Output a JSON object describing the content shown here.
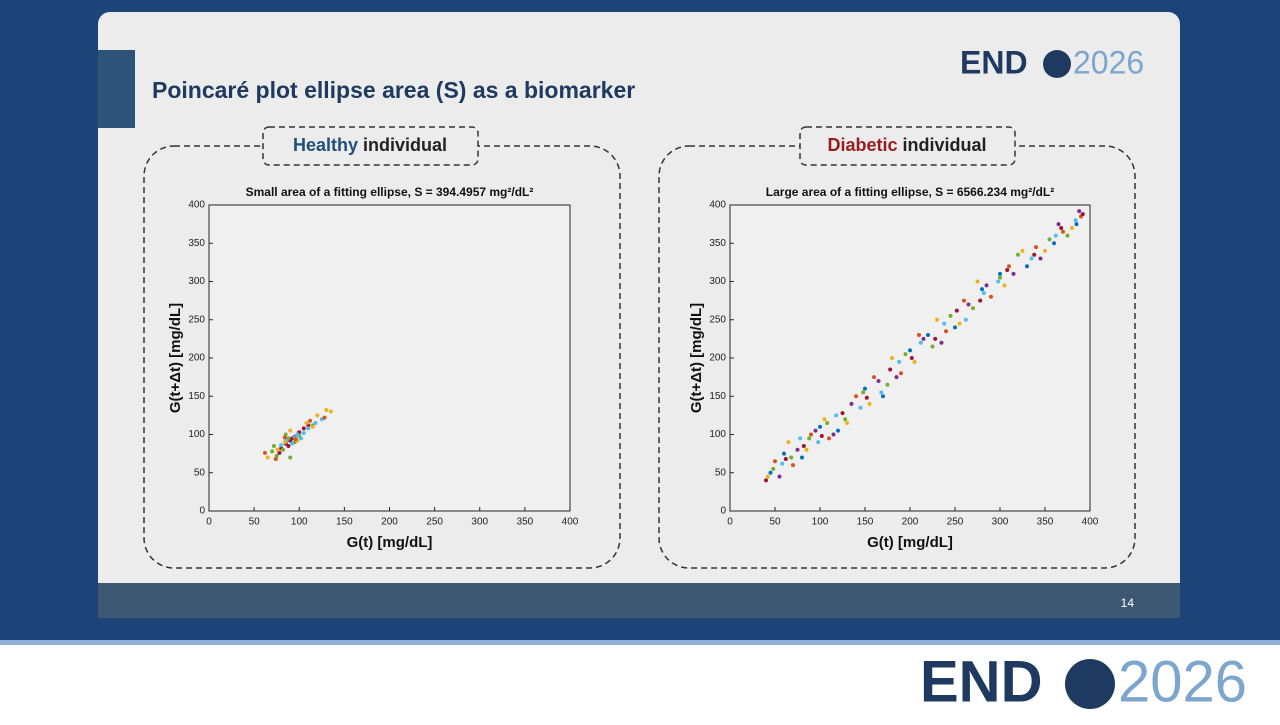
{
  "slide": {
    "title": "Poincaré plot ellipse area (S) as a biomarker",
    "page_number": "14"
  },
  "logo": {
    "left": "END",
    "right": "2026"
  },
  "panels": [
    {
      "highlight": "Healthy",
      "rest": "individual"
    },
    {
      "highlight": "Diabetic",
      "rest": "individual"
    }
  ],
  "chart_data": [
    {
      "type": "scatter",
      "title": "Small area of a fitting ellipse, S = 394.4957 mg²/dL²",
      "x_label": "G(t) [mg/dL]",
      "y_label": "G(t+Δt) [mg/dL]",
      "xlim": [
        0,
        400
      ],
      "ylim": [
        0,
        400
      ],
      "xticks": [
        0,
        50,
        100,
        150,
        200,
        250,
        300,
        350,
        400
      ],
      "yticks": [
        0,
        50,
        100,
        150,
        200,
        250,
        300,
        350,
        400
      ],
      "series": [
        {
          "color": "#A2142F",
          "x": [
            80,
            85,
            90,
            95,
            100,
            88,
            92,
            105,
            78,
            110
          ],
          "y": [
            82,
            88,
            92,
            97,
            103,
            85,
            95,
            108,
            76,
            112
          ]
        },
        {
          "color": "#77AC30",
          "x": [
            70,
            75,
            82,
            95,
            88,
            100,
            115,
            72,
            90,
            85
          ],
          "y": [
            78,
            72,
            80,
            90,
            95,
            98,
            112,
            85,
            70,
            100
          ]
        },
        {
          "color": "#4DBEEE",
          "x": [
            92,
            98,
            105,
            110,
            86,
            95,
            118,
            102,
            80,
            125
          ],
          "y": [
            88,
            100,
            102,
            108,
            92,
            96,
            115,
            95,
            86,
            120
          ]
        },
        {
          "color": "#EDB120",
          "x": [
            65,
            120,
            130,
            108,
            76,
            98,
            135,
            90,
            84,
            115
          ],
          "y": [
            70,
            125,
            132,
            115,
            80,
            92,
            130,
            105,
            90,
            110
          ]
        },
        {
          "color": "#D95319",
          "x": [
            62,
            74,
            96,
            112,
            128,
            84
          ],
          "y": [
            76,
            68,
            94,
            118,
            122,
            96
          ]
        }
      ]
    },
    {
      "type": "scatter",
      "title": "Large area of a fitting ellipse, S = 6566.234 mg²/dL²",
      "x_label": "G(t) [mg/dL]",
      "y_label": "G(t+Δt) [mg/dL]",
      "xlim": [
        0,
        400
      ],
      "ylim": [
        0,
        400
      ],
      "xticks": [
        0,
        50,
        100,
        150,
        200,
        250,
        300,
        350,
        400
      ],
      "yticks": [
        0,
        50,
        100,
        150,
        200,
        250,
        300,
        350,
        400
      ],
      "series": [
        {
          "color": "#0072BD",
          "x": [
            45,
            60,
            80,
            100,
            120,
            150,
            170,
            200,
            220,
            250,
            280,
            300,
            330,
            360,
            385
          ],
          "y": [
            50,
            75,
            70,
            110,
            105,
            160,
            150,
            210,
            230,
            240,
            290,
            310,
            320,
            350,
            375
          ]
        },
        {
          "color": "#D95319",
          "x": [
            50,
            70,
            90,
            110,
            140,
            160,
            190,
            210,
            240,
            260,
            290,
            310,
            340,
            370,
            390
          ],
          "y": [
            65,
            60,
            100,
            95,
            150,
            175,
            180,
            230,
            235,
            275,
            280,
            320,
            345,
            365,
            385
          ]
        },
        {
          "color": "#EDB120",
          "x": [
            42,
            65,
            85,
            105,
            130,
            155,
            180,
            205,
            230,
            255,
            275,
            305,
            325,
            350,
            380
          ],
          "y": [
            45,
            90,
            80,
            120,
            115,
            140,
            200,
            195,
            250,
            245,
            300,
            295,
            340,
            340,
            370
          ]
        },
        {
          "color": "#7E2F8E",
          "x": [
            55,
            75,
            95,
            115,
            135,
            165,
            185,
            215,
            235,
            265,
            285,
            315,
            345,
            365,
            388
          ],
          "y": [
            45,
            80,
            105,
            100,
            140,
            170,
            175,
            225,
            220,
            270,
            295,
            310,
            330,
            375,
            392
          ]
        },
        {
          "color": "#77AC30",
          "x": [
            48,
            68,
            88,
            108,
            128,
            148,
            175,
            195,
            225,
            245,
            270,
            300,
            320,
            355,
            375
          ],
          "y": [
            55,
            70,
            95,
            115,
            120,
            155,
            165,
            205,
            215,
            255,
            265,
            305,
            335,
            355,
            360
          ]
        },
        {
          "color": "#4DBEEE",
          "x": [
            58,
            78,
            98,
            118,
            145,
            168,
            188,
            212,
            238,
            262,
            282,
            298,
            335,
            362,
            384
          ],
          "y": [
            62,
            95,
            90,
            125,
            135,
            155,
            195,
            220,
            245,
            250,
            285,
            300,
            330,
            360,
            380
          ]
        },
        {
          "color": "#A2142F",
          "x": [
            40,
            62,
            82,
            102,
            125,
            152,
            178,
            202,
            228,
            252,
            278,
            308,
            338,
            368,
            392
          ],
          "y": [
            40,
            68,
            85,
            98,
            128,
            148,
            185,
            200,
            225,
            262,
            275,
            315,
            335,
            370,
            388
          ]
        }
      ]
    }
  ]
}
